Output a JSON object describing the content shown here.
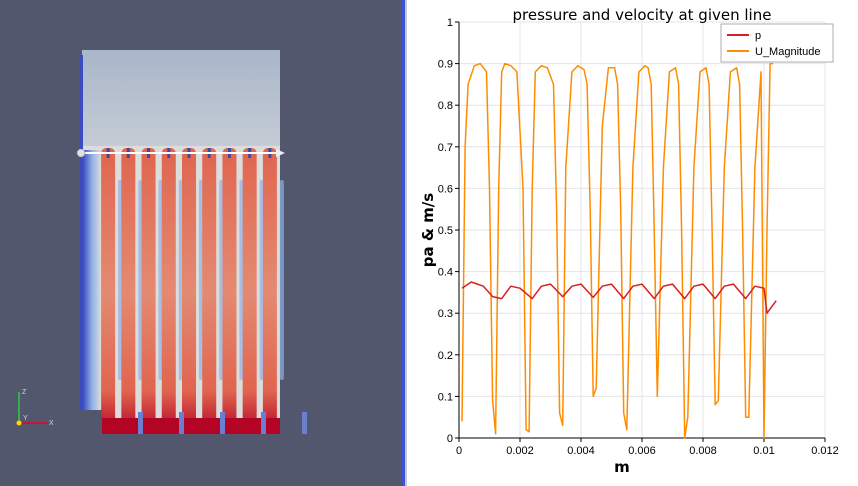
{
  "render_view": {
    "axes_labels": [
      "Z",
      "Y",
      "X"
    ],
    "colors": {
      "background": "#52576e",
      "hot": "#b40426",
      "warm": "#e0654f",
      "mid": "#dcdcdc",
      "cool": "#8fb0e6",
      "cold": "#3b4cc0",
      "probe_line": "#ffffff"
    }
  },
  "chart_data": {
    "type": "line",
    "title": "pressure and velocity at given line",
    "xlabel": "m",
    "ylabel": "pa & m/s",
    "xlim": [
      0,
      0.012
    ],
    "ylim": [
      0,
      1
    ],
    "xticks": [
      "0",
      "0.002",
      "0.004",
      "0.006",
      "0.008",
      "0.01",
      "0.012"
    ],
    "yticks": [
      "0",
      "0.1",
      "0.2",
      "0.3",
      "0.4",
      "0.5",
      "0.6",
      "0.7",
      "0.8",
      "0.9",
      "1"
    ],
    "grid": true,
    "legend_position": "top-right",
    "series": [
      {
        "name": "p",
        "color": "#d62020",
        "x": [
          0.0001,
          0.0004,
          0.0008,
          0.0011,
          0.0014,
          0.0017,
          0.002,
          0.0024,
          0.0027,
          0.003,
          0.0034,
          0.0037,
          0.004,
          0.0044,
          0.0047,
          0.005,
          0.0054,
          0.0057,
          0.006,
          0.0064,
          0.0067,
          0.007,
          0.0074,
          0.0077,
          0.008,
          0.0084,
          0.0087,
          0.009,
          0.0094,
          0.0097,
          0.01,
          0.0101,
          0.0104
        ],
        "values": [
          0.36,
          0.375,
          0.365,
          0.34,
          0.335,
          0.365,
          0.36,
          0.335,
          0.365,
          0.37,
          0.34,
          0.365,
          0.37,
          0.338,
          0.365,
          0.37,
          0.335,
          0.365,
          0.37,
          0.335,
          0.365,
          0.37,
          0.335,
          0.365,
          0.37,
          0.335,
          0.365,
          0.37,
          0.335,
          0.365,
          0.36,
          0.3,
          0.33
        ]
      },
      {
        "name": "U_Magnitude",
        "color": "#ff8c00",
        "x": [
          0.0001,
          0.0002,
          0.0003,
          0.0005,
          0.0007,
          0.0009,
          0.001,
          0.0011,
          0.0012,
          0.0013,
          0.0014,
          0.0015,
          0.0017,
          0.0019,
          0.0021,
          0.0022,
          0.0023,
          0.0024,
          0.0025,
          0.0027,
          0.0029,
          0.0031,
          0.0032,
          0.0033,
          0.0034,
          0.0035,
          0.0037,
          0.0039,
          0.0041,
          0.0042,
          0.0043,
          0.0044,
          0.0045,
          0.0047,
          0.0049,
          0.0051,
          0.0052,
          0.0053,
          0.0054,
          0.0055,
          0.0057,
          0.0059,
          0.0061,
          0.0062,
          0.0063,
          0.0064,
          0.0065,
          0.0067,
          0.0069,
          0.0071,
          0.0072,
          0.0073,
          0.0074,
          0.0075,
          0.0077,
          0.0079,
          0.0081,
          0.0082,
          0.0083,
          0.0084,
          0.0085,
          0.0087,
          0.0089,
          0.0091,
          0.0092,
          0.0093,
          0.0094,
          0.0095,
          0.0097,
          0.0099,
          0.01,
          0.0101,
          0.0102,
          0.0103
        ],
        "values": [
          0.04,
          0.7,
          0.85,
          0.895,
          0.9,
          0.88,
          0.6,
          0.09,
          0.01,
          0.6,
          0.88,
          0.9,
          0.895,
          0.88,
          0.6,
          0.02,
          0.015,
          0.6,
          0.88,
          0.895,
          0.89,
          0.85,
          0.55,
          0.06,
          0.03,
          0.65,
          0.88,
          0.895,
          0.885,
          0.85,
          0.55,
          0.1,
          0.12,
          0.75,
          0.89,
          0.89,
          0.85,
          0.55,
          0.06,
          0.02,
          0.65,
          0.88,
          0.895,
          0.89,
          0.85,
          0.5,
          0.1,
          0.65,
          0.88,
          0.89,
          0.85,
          0.5,
          0.0,
          0.05,
          0.65,
          0.88,
          0.89,
          0.85,
          0.5,
          0.08,
          0.09,
          0.65,
          0.88,
          0.89,
          0.85,
          0.5,
          0.05,
          0.05,
          0.65,
          0.88,
          0.0,
          0.5,
          0.9,
          0.9
        ]
      }
    ]
  }
}
